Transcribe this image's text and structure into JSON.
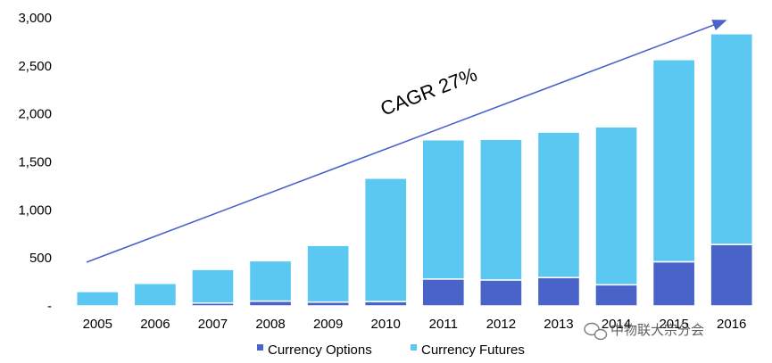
{
  "chart_data": {
    "type": "bar",
    "stacked": true,
    "categories": [
      "2005",
      "2006",
      "2007",
      "2008",
      "2009",
      "2010",
      "2011",
      "2012",
      "2013",
      "2014",
      "2015",
      "2016"
    ],
    "series": [
      {
        "name": "Currency Options",
        "color": "#4A63C9",
        "values": [
          0,
          0,
          30,
          50,
          40,
          45,
          280,
          270,
          295,
          220,
          460,
          640
        ]
      },
      {
        "name": "Currency Futures",
        "color": "#5BC8F2",
        "values": [
          150,
          235,
          350,
          420,
          590,
          1285,
          1450,
          1465,
          1515,
          1645,
          2105,
          2195
        ]
      }
    ],
    "ylim": [
      0,
      3000
    ],
    "yticks": [
      "-",
      "500",
      "1,000",
      "1,500",
      "2,000",
      "2,500",
      "3,000"
    ],
    "grid": false,
    "legend_position": "bottom",
    "annotation": {
      "text": "CAGR 27%",
      "arrow_color": "#4A63C9"
    }
  },
  "watermark": {
    "text": "中物联大宗分会",
    "icon": "wechat-icon"
  }
}
